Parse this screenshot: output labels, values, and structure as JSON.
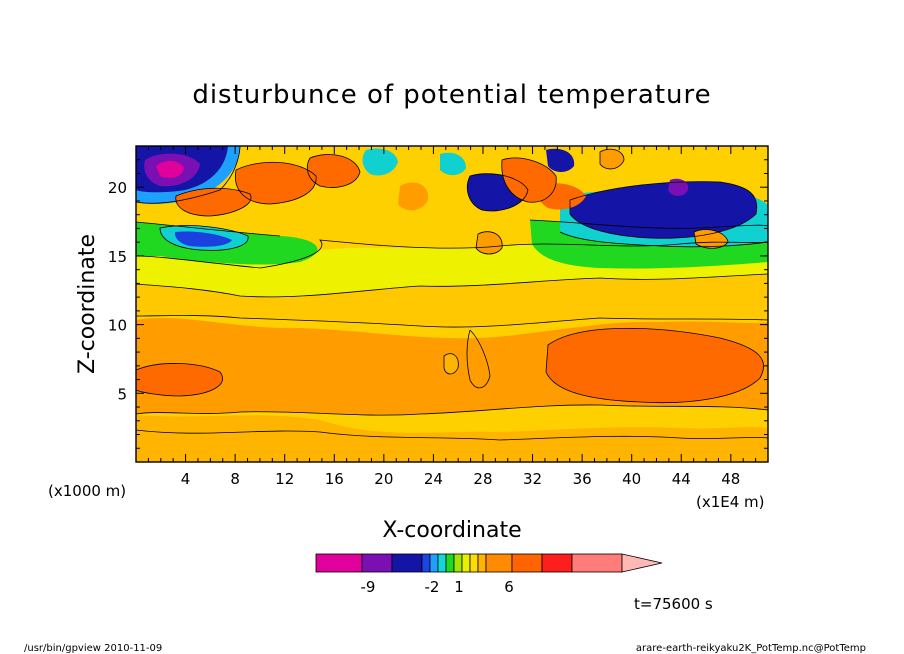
{
  "chart_data": {
    "type": "heatmap",
    "title": "disturbunce of potential temperature",
    "xlabel": "X-coordinate",
    "ylabel": "Z-coordinate",
    "x_unit_left": "(x1000 m)",
    "x_unit_right": "(x1E4 m)",
    "xlim": [
      0,
      51
    ],
    "ylim": [
      0,
      23
    ],
    "x_ticks": [
      "4",
      "8",
      "12",
      "16",
      "20",
      "24",
      "28",
      "32",
      "36",
      "40",
      "44",
      "48"
    ],
    "y_ticks": [
      "5",
      "10",
      "15",
      "20"
    ],
    "colorbar": {
      "colors": [
        "#e0009c",
        "#7a10b4",
        "#1414a6",
        "#1e44e6",
        "#1ea0ff",
        "#10d8d8",
        "#20d820",
        "#a0e600",
        "#e6f000",
        "#ffdc00",
        "#ffb400",
        "#ff8c00",
        "#ff6400",
        "#ff1e1e",
        "#ff7c78",
        "#ffb8b4"
      ],
      "labels": [
        "-9",
        "-2",
        "1",
        "6"
      ]
    },
    "time_label": "t=75600 s",
    "layers": [
      {
        "z_range": [
          0,
          3
        ],
        "level": "warm-orange"
      },
      {
        "z_range": [
          3,
          10
        ],
        "level": "orange"
      },
      {
        "z_range": [
          10,
          14
        ],
        "level": "light-orange"
      },
      {
        "z_range": [
          14,
          17
        ],
        "level": "yellow-green"
      },
      {
        "z_range": [
          17,
          23
        ],
        "level": "mixed-cold-warm"
      }
    ]
  },
  "footer": {
    "left": "/usr/bin/gpview  2010-11-09",
    "right": "arare-earth-reikyaku2K_PotTemp.nc@PotTemp"
  }
}
